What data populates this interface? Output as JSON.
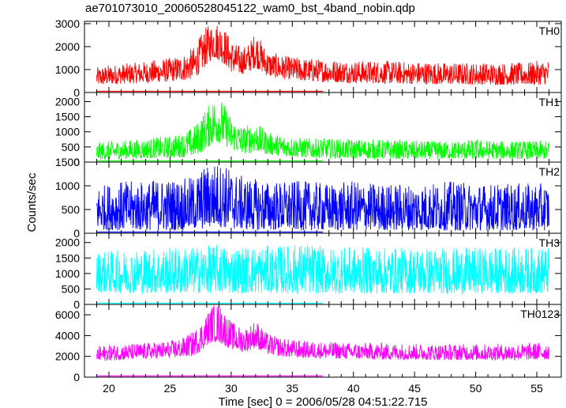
{
  "title": "ae701073010_20060528045122_wam0_bst_4band_nobin.qdp",
  "chart_data": {
    "type": "line",
    "title": "ae701073010_20060528045122_wam0_bst_4band_nobin.qdp",
    "xlabel": "Time [sec] 0 = 2006/05/28 04:51:22.715",
    "ylabel": "Counts/sec",
    "xlim": [
      18,
      57
    ],
    "x_ticks": [
      20,
      25,
      30,
      35,
      40,
      45,
      50,
      55
    ],
    "x_data_range": [
      19,
      56
    ],
    "grid": false,
    "panels": [
      {
        "name": "TH0",
        "color": "#ff0000",
        "ylim": [
          0,
          3100
        ],
        "y_ticks": [
          0,
          1000,
          2000,
          3000
        ],
        "x": [
          19,
          20,
          21,
          22,
          23,
          24,
          25,
          26,
          27,
          27.5,
          28,
          28.5,
          29,
          29.5,
          30,
          30.5,
          31,
          31.5,
          32,
          32.5,
          33,
          34,
          35,
          36,
          38,
          40,
          42,
          44,
          46,
          48,
          50,
          52,
          54,
          56
        ],
        "low": [
          300,
          350,
          380,
          400,
          420,
          450,
          480,
          520,
          600,
          900,
          1200,
          1500,
          1400,
          1200,
          900,
          800,
          800,
          900,
          1100,
          900,
          700,
          600,
          550,
          500,
          450,
          420,
          400,
          380,
          360,
          350,
          350,
          340,
          330,
          350
        ],
        "high": [
          1100,
          1200,
          1250,
          1300,
          1350,
          1450,
          1500,
          1650,
          2000,
          2500,
          2900,
          3050,
          3100,
          2800,
          2300,
          2100,
          2000,
          2200,
          2700,
          2200,
          1800,
          1650,
          1550,
          1500,
          1450,
          1400,
          1400,
          1350,
          1350,
          1300,
          1300,
          1300,
          1300,
          1450
        ]
      },
      {
        "name": "TH1",
        "color": "#00ff00",
        "ylim": [
          0,
          2300
        ],
        "y_ticks": [
          0,
          500,
          1000,
          1500,
          2000
        ],
        "x": [
          19,
          20,
          21,
          22,
          23,
          24,
          25,
          26,
          27,
          27.5,
          28,
          28.5,
          29,
          29.5,
          30,
          30.5,
          31,
          31.5,
          32,
          32.5,
          33,
          34,
          35,
          36,
          38,
          40,
          42,
          44,
          46,
          48,
          50,
          52,
          54,
          56
        ],
        "low": [
          80,
          90,
          100,
          110,
          120,
          130,
          140,
          150,
          200,
          300,
          450,
          600,
          650,
          550,
          400,
          330,
          300,
          300,
          350,
          300,
          250,
          200,
          170,
          150,
          130,
          120,
          110,
          100,
          100,
          100,
          100,
          100,
          100,
          100
        ],
        "high": [
          650,
          700,
          720,
          750,
          780,
          820,
          860,
          950,
          1200,
          1500,
          1800,
          2100,
          2200,
          1900,
          1500,
          1300,
          1200,
          1250,
          1350,
          1150,
          1000,
          900,
          850,
          800,
          780,
          760,
          750,
          720,
          700,
          700,
          750,
          700,
          700,
          700
        ]
      },
      {
        "name": "TH2",
        "color": "#0000ff",
        "ylim": [
          0,
          1500
        ],
        "y_ticks": [
          0,
          500,
          1000,
          1500
        ],
        "x": [
          19,
          20,
          21,
          22,
          23,
          24,
          25,
          26,
          27,
          27.5,
          28,
          28.5,
          29,
          29.5,
          30,
          30.5,
          31,
          32,
          33,
          34,
          36,
          38,
          40,
          42,
          44,
          46,
          48,
          50,
          52,
          54,
          56
        ],
        "low": [
          80,
          70,
          60,
          60,
          60,
          60,
          60,
          60,
          70,
          80,
          100,
          120,
          130,
          110,
          90,
          80,
          70,
          60,
          60,
          60,
          60,
          60,
          60,
          60,
          60,
          60,
          60,
          60,
          60,
          60,
          60
        ],
        "high": [
          1000,
          1050,
          1100,
          1100,
          1100,
          1150,
          1150,
          1150,
          1200,
          1350,
          1450,
          1500,
          1500,
          1450,
          1350,
          1250,
          1200,
          1150,
          1100,
          1100,
          1100,
          1050,
          1100,
          1050,
          1050,
          1050,
          1100,
          1050,
          1050,
          1050,
          1050
        ]
      },
      {
        "name": "TH3",
        "color": "#00ffff",
        "ylim": [
          0,
          2300
        ],
        "y_ticks": [
          0,
          500,
          1000,
          1500,
          2000
        ],
        "x": [
          19,
          20,
          22,
          24,
          26,
          28,
          29,
          30,
          32,
          34,
          36,
          38,
          40,
          42,
          44,
          46,
          48,
          50,
          52,
          54,
          56
        ],
        "low": [
          400,
          380,
          370,
          360,
          360,
          370,
          380,
          370,
          360,
          360,
          360,
          350,
          350,
          350,
          350,
          350,
          350,
          350,
          350,
          350,
          350
        ],
        "high": [
          1700,
          1750,
          1800,
          1850,
          1850,
          1900,
          1950,
          1900,
          1900,
          1900,
          2000,
          1850,
          1850,
          1850,
          1850,
          1850,
          1850,
          1850,
          1850,
          1850,
          1850
        ]
      },
      {
        "name": "TH0123",
        "color": "#ff00ff",
        "ylim": [
          0,
          7000
        ],
        "y_ticks": [
          0,
          2000,
          4000,
          6000
        ],
        "x": [
          19,
          20,
          21,
          22,
          23,
          24,
          25,
          26,
          27,
          27.5,
          28,
          28.5,
          29,
          29.5,
          30,
          30.5,
          31,
          31.5,
          32,
          32.5,
          33,
          34,
          35,
          36,
          38,
          40,
          42,
          44,
          46,
          48,
          50,
          52,
          54,
          56
        ],
        "low": [
          1500,
          1600,
          1650,
          1700,
          1750,
          1800,
          1850,
          1900,
          2100,
          2500,
          3000,
          3400,
          3300,
          3000,
          2700,
          2500,
          2400,
          2600,
          2800,
          2500,
          2200,
          2000,
          1900,
          1850,
          1800,
          1750,
          1700,
          1700,
          1650,
          1650,
          1650,
          1650,
          1650,
          1700
        ],
        "high": [
          3000,
          3100,
          3200,
          3250,
          3300,
          3400,
          3500,
          3800,
          4500,
          5200,
          6200,
          7000,
          7100,
          6300,
          5400,
          5000,
          4700,
          5000,
          5600,
          4800,
          4200,
          3800,
          3600,
          3500,
          3400,
          3300,
          3300,
          3250,
          3200,
          3200,
          3200,
          3200,
          3250,
          3400
        ]
      }
    ]
  }
}
